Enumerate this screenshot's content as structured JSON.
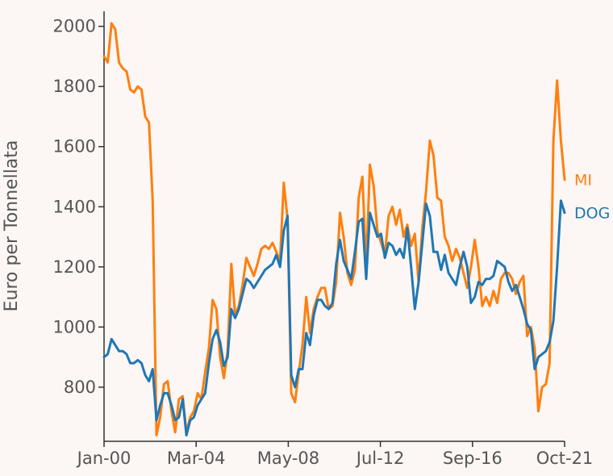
{
  "chart_data": {
    "type": "line",
    "title": "",
    "xlabel": "",
    "ylabel": "Euro per Tonnellata",
    "x_tick_labels": [
      "Jan-00",
      "Mar-04",
      "May-08",
      "Jul-12",
      "Sep-16",
      "Oct-21"
    ],
    "y_ticks": [
      800,
      1000,
      1200,
      1400,
      1600,
      1800,
      2000
    ],
    "ylim": [
      620,
      2050
    ],
    "grid": false,
    "legend": "inline-right",
    "series": [
      {
        "name": "MI",
        "color": "#ff7f0e",
        "points": [
          [
            0,
            1900
          ],
          [
            0.5,
            1880
          ],
          [
            1,
            2010
          ],
          [
            1.5,
            1990
          ],
          [
            2,
            1880
          ],
          [
            2.5,
            1860
          ],
          [
            3,
            1850
          ],
          [
            3.5,
            1790
          ],
          [
            4,
            1780
          ],
          [
            4.5,
            1800
          ],
          [
            5,
            1790
          ],
          [
            5.5,
            1700
          ],
          [
            6,
            1680
          ],
          [
            6.5,
            1420
          ],
          [
            7,
            640
          ],
          [
            7.5,
            700
          ],
          [
            8,
            810
          ],
          [
            8.5,
            820
          ],
          [
            9,
            720
          ],
          [
            9.5,
            650
          ],
          [
            10,
            760
          ],
          [
            10.5,
            770
          ],
          [
            11,
            650
          ],
          [
            11.5,
            700
          ],
          [
            12,
            720
          ],
          [
            12.5,
            780
          ],
          [
            13,
            760
          ],
          [
            13.5,
            850
          ],
          [
            14,
            930
          ],
          [
            14.5,
            1090
          ],
          [
            15,
            1060
          ],
          [
            15.5,
            900
          ],
          [
            16,
            830
          ],
          [
            16.5,
            920
          ],
          [
            17,
            1210
          ],
          [
            17.5,
            1040
          ],
          [
            18,
            1070
          ],
          [
            18.5,
            1140
          ],
          [
            19,
            1230
          ],
          [
            19.5,
            1200
          ],
          [
            20,
            1170
          ],
          [
            20.5,
            1210
          ],
          [
            21,
            1260
          ],
          [
            21.5,
            1270
          ],
          [
            22,
            1260
          ],
          [
            22.5,
            1280
          ],
          [
            23,
            1250
          ],
          [
            23.5,
            1220
          ],
          [
            24,
            1480
          ],
          [
            24.5,
            1360
          ],
          [
            25,
            780
          ],
          [
            25.5,
            750
          ],
          [
            26,
            850
          ],
          [
            26.5,
            940
          ],
          [
            27,
            1100
          ],
          [
            27.5,
            980
          ],
          [
            28,
            1060
          ],
          [
            28.5,
            1100
          ],
          [
            29,
            1130
          ],
          [
            29.5,
            1130
          ],
          [
            30,
            1060
          ],
          [
            30.5,
            1070
          ],
          [
            31,
            1150
          ],
          [
            31.5,
            1380
          ],
          [
            32,
            1300
          ],
          [
            32.5,
            1180
          ],
          [
            33,
            1140
          ],
          [
            33.5,
            1190
          ],
          [
            34,
            1430
          ],
          [
            34.5,
            1500
          ],
          [
            35,
            1200
          ],
          [
            35.5,
            1540
          ],
          [
            36,
            1470
          ],
          [
            36.5,
            1320
          ],
          [
            37,
            1280
          ],
          [
            37.5,
            1240
          ],
          [
            38,
            1370
          ],
          [
            38.5,
            1400
          ],
          [
            39,
            1340
          ],
          [
            39.5,
            1390
          ],
          [
            40,
            1300
          ],
          [
            40.5,
            1340
          ],
          [
            41,
            1270
          ],
          [
            41.5,
            1310
          ],
          [
            42,
            1150
          ],
          [
            42.5,
            1330
          ],
          [
            43,
            1450
          ],
          [
            43.5,
            1620
          ],
          [
            44,
            1570
          ],
          [
            44.5,
            1430
          ],
          [
            45,
            1420
          ],
          [
            45.5,
            1300
          ],
          [
            46,
            1270
          ],
          [
            46.5,
            1220
          ],
          [
            47,
            1260
          ],
          [
            47.5,
            1230
          ],
          [
            48,
            1180
          ],
          [
            48.5,
            1130
          ],
          [
            49,
            1200
          ],
          [
            49.5,
            1290
          ],
          [
            50,
            1200
          ],
          [
            50.5,
            1070
          ],
          [
            51,
            1100
          ],
          [
            51.5,
            1070
          ],
          [
            52,
            1120
          ],
          [
            52.5,
            1080
          ],
          [
            53,
            1160
          ],
          [
            53.5,
            1180
          ],
          [
            54,
            1180
          ],
          [
            54.5,
            1160
          ],
          [
            55,
            1110
          ],
          [
            55.5,
            1150
          ],
          [
            56,
            1170
          ],
          [
            56.5,
            970
          ],
          [
            57,
            1000
          ],
          [
            57.5,
            930
          ],
          [
            58,
            720
          ],
          [
            58.5,
            800
          ],
          [
            59,
            810
          ],
          [
            59.5,
            880
          ],
          [
            60,
            1620
          ],
          [
            60.5,
            1820
          ],
          [
            61,
            1620
          ],
          [
            61.5,
            1490
          ]
        ]
      },
      {
        "name": "DOG",
        "color": "#1f77b4",
        "points": [
          [
            0,
            900
          ],
          [
            0.5,
            910
          ],
          [
            1,
            960
          ],
          [
            1.5,
            940
          ],
          [
            2,
            920
          ],
          [
            2.5,
            920
          ],
          [
            3,
            910
          ],
          [
            3.5,
            880
          ],
          [
            4,
            880
          ],
          [
            4.5,
            890
          ],
          [
            5,
            880
          ],
          [
            5.5,
            840
          ],
          [
            6,
            820
          ],
          [
            6.5,
            860
          ],
          [
            7,
            690
          ],
          [
            7.5,
            740
          ],
          [
            8,
            780
          ],
          [
            8.5,
            780
          ],
          [
            9,
            740
          ],
          [
            9.5,
            690
          ],
          [
            10,
            700
          ],
          [
            10.5,
            760
          ],
          [
            11,
            640
          ],
          [
            11.5,
            690
          ],
          [
            12,
            700
          ],
          [
            12.5,
            740
          ],
          [
            13,
            760
          ],
          [
            13.5,
            780
          ],
          [
            14,
            880
          ],
          [
            14.5,
            960
          ],
          [
            15,
            990
          ],
          [
            15.5,
            950
          ],
          [
            16,
            870
          ],
          [
            16.5,
            900
          ],
          [
            17,
            1060
          ],
          [
            17.5,
            1030
          ],
          [
            18,
            1060
          ],
          [
            18.5,
            1110
          ],
          [
            19,
            1160
          ],
          [
            19.5,
            1150
          ],
          [
            20,
            1130
          ],
          [
            20.5,
            1150
          ],
          [
            21,
            1170
          ],
          [
            21.5,
            1190
          ],
          [
            22,
            1200
          ],
          [
            22.5,
            1210
          ],
          [
            23,
            1240
          ],
          [
            23.5,
            1200
          ],
          [
            24,
            1320
          ],
          [
            24.5,
            1370
          ],
          [
            25,
            840
          ],
          [
            25.5,
            800
          ],
          [
            26,
            860
          ],
          [
            26.5,
            860
          ],
          [
            27,
            980
          ],
          [
            27.5,
            940
          ],
          [
            28,
            1040
          ],
          [
            28.5,
            1090
          ],
          [
            29,
            1090
          ],
          [
            29.5,
            1070
          ],
          [
            30,
            1060
          ],
          [
            30.5,
            1080
          ],
          [
            31,
            1210
          ],
          [
            31.5,
            1290
          ],
          [
            32,
            1220
          ],
          [
            32.5,
            1190
          ],
          [
            33,
            1160
          ],
          [
            33.5,
            1250
          ],
          [
            34,
            1350
          ],
          [
            34.5,
            1360
          ],
          [
            35,
            1160
          ],
          [
            35.5,
            1380
          ],
          [
            36,
            1340
          ],
          [
            36.5,
            1300
          ],
          [
            37,
            1310
          ],
          [
            37.5,
            1230
          ],
          [
            38,
            1280
          ],
          [
            38.5,
            1270
          ],
          [
            39,
            1240
          ],
          [
            39.5,
            1260
          ],
          [
            40,
            1230
          ],
          [
            40.5,
            1330
          ],
          [
            41,
            1200
          ],
          [
            41.5,
            1060
          ],
          [
            42,
            1150
          ],
          [
            42.5,
            1280
          ],
          [
            43,
            1410
          ],
          [
            43.5,
            1370
          ],
          [
            44,
            1250
          ],
          [
            44.5,
            1250
          ],
          [
            45,
            1190
          ],
          [
            45.5,
            1240
          ],
          [
            46,
            1180
          ],
          [
            46.5,
            1160
          ],
          [
            47,
            1140
          ],
          [
            47.5,
            1200
          ],
          [
            48,
            1250
          ],
          [
            48.5,
            1200
          ],
          [
            49,
            1080
          ],
          [
            49.5,
            1100
          ],
          [
            50,
            1150
          ],
          [
            50.5,
            1140
          ],
          [
            51,
            1160
          ],
          [
            51.5,
            1160
          ],
          [
            52,
            1170
          ],
          [
            52.5,
            1220
          ],
          [
            53,
            1210
          ],
          [
            53.5,
            1200
          ],
          [
            54,
            1150
          ],
          [
            54.5,
            1120
          ],
          [
            55,
            1140
          ],
          [
            55.5,
            1100
          ],
          [
            56,
            1060
          ],
          [
            56.5,
            1010
          ],
          [
            57,
            990
          ],
          [
            57.5,
            860
          ],
          [
            58,
            900
          ],
          [
            58.5,
            910
          ],
          [
            59,
            920
          ],
          [
            59.5,
            950
          ],
          [
            60,
            1020
          ],
          [
            60.5,
            1200
          ],
          [
            61,
            1420
          ],
          [
            61.5,
            1380
          ]
        ]
      }
    ]
  }
}
